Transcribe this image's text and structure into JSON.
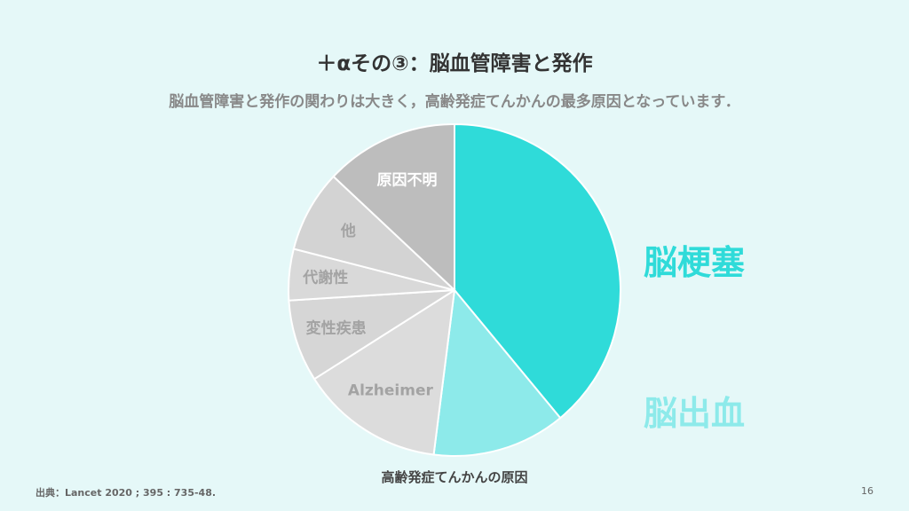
{
  "slide": {
    "title": "＋αその③：脳血管障害と発作",
    "subtitle": "脳血管障害と発作の関わりは大きく，高齢発症てんかんの最多原因となっています．",
    "caption": "高齢発症てんかんの原因",
    "source": "出典：Lancet 2020 ; 395 : 735-48.",
    "page_number": "16"
  },
  "chart_data": {
    "type": "pie",
    "title": "",
    "start": "12 o'clock, clockwise",
    "slices": [
      {
        "label": "脳梗塞",
        "value": 39,
        "color": "#2fdbd9",
        "label_color": "#2fdbd9",
        "label_placement": "outside"
      },
      {
        "label": "脳出血",
        "value": 13,
        "color": "#8deaea",
        "label_color": "#8deaea",
        "label_placement": "outside"
      },
      {
        "label": "Alzheimer",
        "value": 14,
        "color": "#dcdcdc",
        "label_color": "#a3a3a3",
        "label_placement": "inside"
      },
      {
        "label": "変性疾患",
        "value": 8,
        "color": "#d6d6d6",
        "label_color": "#a3a3a3",
        "label_placement": "inside"
      },
      {
        "label": "代謝性",
        "value": 5,
        "color": "#d9d9d9",
        "label_color": "#a3a3a3",
        "label_placement": "inside"
      },
      {
        "label": "他",
        "value": 8,
        "color": "#d3d3d3",
        "label_color": "#a3a3a3",
        "label_placement": "inside"
      },
      {
        "label": "原因不明",
        "value": 13,
        "color": "#bdbdbd",
        "label_color": "#ffffff",
        "label_placement": "inside"
      }
    ]
  }
}
